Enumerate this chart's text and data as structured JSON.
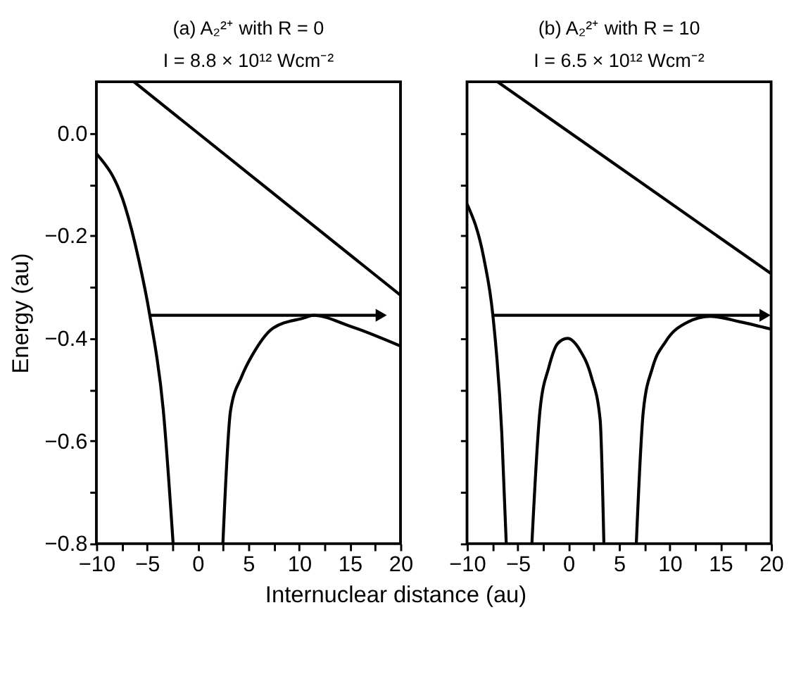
{
  "chart_data": [
    {
      "type": "line",
      "title": "(a) A₂²⁺ with R = 0",
      "subtitle": "I = 8.8 × 10¹² Wcm⁻²",
      "xlabel": "Internuclear distance (au)",
      "ylabel": "Energy (au)",
      "xlim": [
        -10,
        20
      ],
      "ylim": [
        -0.8,
        0.1
      ],
      "xticks": [
        -10,
        {
          "value": -7.5,
          "label": null
        },
        -5,
        {
          "value": -2.5,
          "label": null
        },
        0,
        {
          "value": 2.5,
          "label": null
        },
        5,
        {
          "value": 7.5,
          "label": null
        },
        10,
        {
          "value": 12.5,
          "label": null
        },
        15,
        {
          "value": 17.5,
          "label": null
        },
        20
      ],
      "yticks": [
        -0.8,
        {
          "value": -0.7,
          "label": null
        },
        -0.6,
        {
          "value": -0.5,
          "label": null
        },
        -0.4,
        {
          "value": -0.3,
          "label": null
        },
        -0.2,
        {
          "value": -0.1,
          "label": null
        },
        {
          "value": 0,
          "label": "0.0"
        }
      ],
      "grid": false,
      "series": [
        {
          "color": "#000000",
          "x": [
            -6.3,
            20
          ],
          "values": [
            0.1,
            -0.316
          ]
        },
        {
          "color": "#000000",
          "x": [
            -10,
            -7.17,
            -5.84,
            -4.73,
            -3.4,
            -2.43
          ],
          "values": [
            -0.04,
            -0.143,
            -0.245,
            -0.355,
            -0.54,
            -0.8
          ]
        },
        {
          "color": "#000000",
          "x": [
            2.48,
            3.24,
            4.34,
            5.67,
            7.44,
            10.5,
            11.4,
            15,
            20
          ],
          "values": [
            -0.8,
            -0.54,
            -0.474,
            -0.423,
            -0.38,
            -0.36,
            -0.355,
            -0.376,
            -0.415
          ]
        },
        {
          "color": "#000000",
          "x": [
            -4.73,
            18.1
          ],
          "values": [
            -0.355,
            -0.355
          ]
        }
      ]
    },
    {
      "type": "line",
      "title": "(b) A₂²⁺ with R = 10",
      "subtitle": "I = 6.5 × 10¹² Wcm⁻²",
      "xlim": [
        -10,
        20
      ],
      "ylim": [
        -0.8,
        0.1
      ],
      "tick_labels": "x",
      "yticks": [
        {
          "value": -0.8,
          "label": null
        },
        {
          "value": -0.7,
          "label": null
        },
        {
          "value": -0.6,
          "label": null
        },
        {
          "value": -0.5,
          "label": null
        },
        {
          "value": -0.4,
          "label": null
        },
        {
          "value": -0.3,
          "label": null
        },
        {
          "value": -0.2,
          "label": null
        },
        {
          "value": -0.1,
          "label": null
        },
        {
          "value": 0,
          "label": null
        }
      ],
      "xticks": [
        -10,
        {
          "value": -7.5,
          "label": null
        },
        -5,
        {
          "value": -2.5,
          "label": null
        },
        0,
        {
          "value": 2.5,
          "label": null
        },
        5,
        {
          "value": 7.5,
          "label": null
        },
        10,
        {
          "value": 12.5,
          "label": null
        },
        15,
        {
          "value": 17.5,
          "label": null
        },
        20
      ],
      "grid": false,
      "series": [
        {
          "color": "#000000",
          "x": [
            -7.0,
            20
          ],
          "values": [
            0.1,
            -0.274
          ]
        },
        {
          "color": "#000000",
          "x": [
            -10,
            -8.33,
            -7.45,
            -6.57,
            -6.13
          ],
          "values": [
            -0.138,
            -0.245,
            -0.355,
            -0.585,
            -0.8
          ]
        },
        {
          "color": "#000000",
          "x": [
            -3.6,
            -2.8,
            -1.94,
            -1.06,
            -0.09,
            1.14,
            2.25,
            3.13,
            3.5
          ],
          "values": [
            -0.8,
            -0.54,
            -0.457,
            -0.41,
            -0.4,
            -0.423,
            -0.474,
            -0.558,
            -0.8
          ]
        },
        {
          "color": "#000000",
          "x": [
            6.7,
            7.4,
            8.3,
            9.6,
            11.8,
            14.0,
            17.0,
            20
          ],
          "values": [
            -0.8,
            -0.54,
            -0.457,
            -0.406,
            -0.368,
            -0.357,
            -0.368,
            -0.382
          ]
        },
        {
          "color": "#000000",
          "x": [
            -7.45,
            19.4
          ],
          "values": [
            -0.355,
            -0.355
          ]
        }
      ]
    }
  ]
}
